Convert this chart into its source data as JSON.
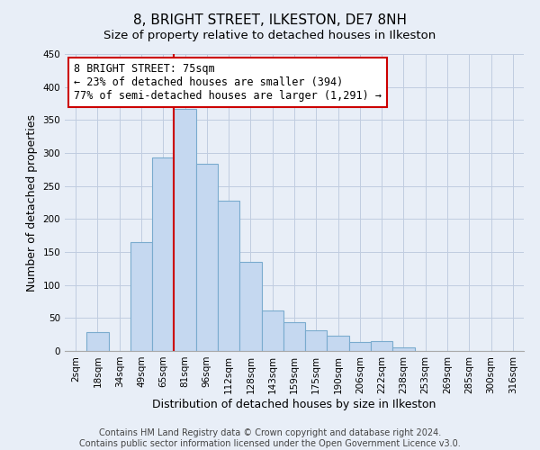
{
  "title": "8, BRIGHT STREET, ILKESTON, DE7 8NH",
  "subtitle": "Size of property relative to detached houses in Ilkeston",
  "xlabel": "Distribution of detached houses by size in Ilkeston",
  "ylabel": "Number of detached properties",
  "bar_labels": [
    "2sqm",
    "18sqm",
    "34sqm",
    "49sqm",
    "65sqm",
    "81sqm",
    "96sqm",
    "112sqm",
    "128sqm",
    "143sqm",
    "159sqm",
    "175sqm",
    "190sqm",
    "206sqm",
    "222sqm",
    "238sqm",
    "253sqm",
    "269sqm",
    "285sqm",
    "300sqm",
    "316sqm"
  ],
  "bar_values": [
    0,
    28,
    0,
    165,
    293,
    367,
    283,
    228,
    135,
    62,
    44,
    32,
    23,
    14,
    15,
    6,
    0,
    0,
    0,
    0,
    0
  ],
  "bar_color": "#c5d8f0",
  "bar_edge_color": "#7aabce",
  "vline_x_index": 5,
  "vline_color": "#cc0000",
  "annotation_line1": "8 BRIGHT STREET: 75sqm",
  "annotation_line2": "← 23% of detached houses are smaller (394)",
  "annotation_line3": "77% of semi-detached houses are larger (1,291) →",
  "annotation_box_color": "white",
  "annotation_box_edgecolor": "#cc0000",
  "ylim": [
    0,
    450
  ],
  "yticks": [
    0,
    50,
    100,
    150,
    200,
    250,
    300,
    350,
    400,
    450
  ],
  "footer1": "Contains HM Land Registry data © Crown copyright and database right 2024.",
  "footer2": "Contains public sector information licensed under the Open Government Licence v3.0.",
  "bg_color": "#e8eef7",
  "plot_bg_color": "#e8eef7",
  "title_fontsize": 11,
  "subtitle_fontsize": 9.5,
  "axis_label_fontsize": 9,
  "tick_fontsize": 7.5,
  "footer_fontsize": 7,
  "annotation_fontsize": 8.5
}
